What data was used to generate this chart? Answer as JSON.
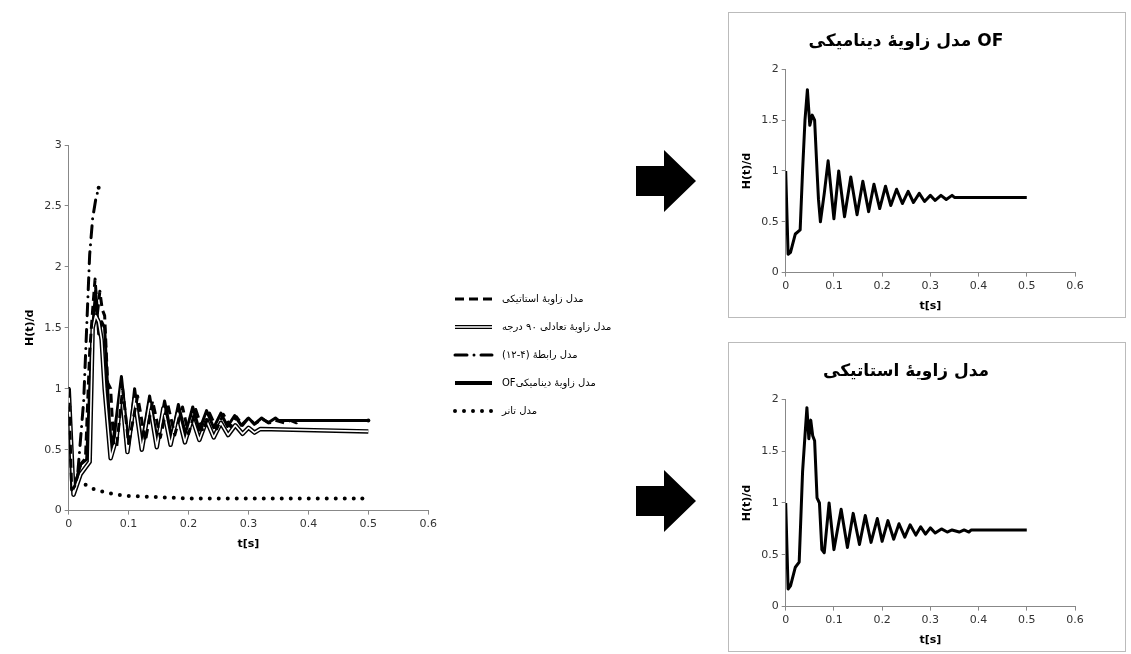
{
  "chart_data": [
    {
      "type": "line",
      "xlabel": "t[s]",
      "ylabel": "H(t)/d",
      "xlim": [
        0,
        0.6
      ],
      "xticks": [
        0,
        0.1,
        0.2,
        0.3,
        0.4,
        0.5,
        0.6
      ],
      "ylim": [
        0,
        3
      ],
      "yticks": [
        0,
        0.5,
        1,
        1.5,
        2,
        2.5,
        3
      ],
      "legend": "right",
      "grid": false,
      "marker": "none",
      "series": [
        {
          "name": "مدل زاویهٔ استاتیکی",
          "color": "#000000",
          "line_style": "dashed",
          "x": [
            0,
            0.005,
            0.01,
            0.02,
            0.028,
            0.035,
            0.04,
            0.044,
            0.048,
            0.052,
            0.056,
            0.06,
            0.065,
            0.07,
            0.075,
            0.08,
            0.09,
            0.1,
            0.115,
            0.128,
            0.14,
            0.153,
            0.165,
            0.177,
            0.19,
            0.2,
            0.212,
            0.224,
            0.235,
            0.247,
            0.258,
            0.27,
            0.28,
            0.29,
            0.3,
            0.31,
            0.323,
            0.335,
            0.345,
            0.36,
            0.37,
            0.38,
            0.385,
            0.5
          ],
          "values": [
            1,
            0.17,
            0.2,
            0.38,
            0.43,
            1.3,
            1.65,
            1.9,
            1.62,
            1.8,
            1.65,
            1.6,
            1.05,
            1.0,
            0.55,
            0.52,
            1.0,
            0.55,
            0.94,
            0.57,
            0.9,
            0.6,
            0.88,
            0.62,
            0.85,
            0.63,
            0.83,
            0.65,
            0.8,
            0.67,
            0.79,
            0.69,
            0.77,
            0.7,
            0.76,
            0.71,
            0.75,
            0.72,
            0.74,
            0.72,
            0.74,
            0.72,
            0.74,
            0.74
          ]
        },
        {
          "name": "مدل زاویهٔ تعادلی ۹۰ درجه",
          "color": "#000000",
          "line_style": "solid",
          "x": [
            0,
            0.008,
            0.02,
            0.035,
            0.04,
            0.045,
            0.05,
            0.055,
            0.06,
            0.07,
            0.08,
            0.088,
            0.098,
            0.11,
            0.122,
            0.135,
            0.147,
            0.158,
            0.17,
            0.182,
            0.194,
            0.206,
            0.218,
            0.23,
            0.242,
            0.254,
            0.266,
            0.278,
            0.29,
            0.3,
            0.31,
            0.32,
            0.5
          ],
          "values": [
            1,
            0.13,
            0.3,
            0.4,
            1.5,
            1.6,
            1.55,
            1.4,
            1.0,
            0.43,
            0.6,
            1.0,
            0.48,
            0.92,
            0.5,
            0.88,
            0.52,
            0.84,
            0.54,
            0.8,
            0.56,
            0.76,
            0.58,
            0.74,
            0.6,
            0.72,
            0.62,
            0.7,
            0.63,
            0.68,
            0.64,
            0.67,
            0.65
          ]
        },
        {
          "name": "مدل رابطهٔ (۴-۱۲)",
          "color": "#000000",
          "line_style": "dashdot",
          "x": [
            0,
            0.008,
            0.015,
            0.025,
            0.03,
            0.035,
            0.04,
            0.045,
            0.05
          ],
          "values": [
            1,
            0.13,
            0.3,
            0.9,
            1.5,
            2.1,
            2.4,
            2.55,
            2.65
          ]
        },
        {
          "name": "مدل زاویهٔ دینامیکیOF",
          "color": "#000000",
          "line_style": "solid",
          "x": [
            0,
            0.005,
            0.01,
            0.02,
            0.03,
            0.035,
            0.04,
            0.045,
            0.05,
            0.055,
            0.06,
            0.065,
            0.068,
            0.072,
            0.08,
            0.088,
            0.1,
            0.11,
            0.122,
            0.135,
            0.148,
            0.16,
            0.172,
            0.183,
            0.195,
            0.207,
            0.218,
            0.23,
            0.242,
            0.254,
            0.265,
            0.277,
            0.288,
            0.3,
            0.31,
            0.322,
            0.333,
            0.345,
            0.35,
            0.5
          ],
          "values": [
            1,
            0.18,
            0.2,
            0.38,
            0.42,
            1.0,
            1.5,
            1.8,
            1.45,
            1.55,
            1.5,
            1.0,
            0.72,
            0.5,
            0.78,
            1.1,
            0.53,
            1.0,
            0.55,
            0.94,
            0.57,
            0.9,
            0.6,
            0.87,
            0.63,
            0.85,
            0.66,
            0.82,
            0.68,
            0.8,
            0.69,
            0.78,
            0.7,
            0.76,
            0.71,
            0.76,
            0.72,
            0.76,
            0.74,
            0.74
          ]
        },
        {
          "name": "مدل تانر",
          "color": "#000000",
          "line_style": "dotted",
          "x": [
            0,
            0.007,
            0.015,
            0.025,
            0.04,
            0.06,
            0.08,
            0.1,
            0.15,
            0.2,
            0.3,
            0.49
          ],
          "values": [
            1,
            0.15,
            0.25,
            0.22,
            0.18,
            0.15,
            0.13,
            0.12,
            0.11,
            0.1,
            0.1,
            0.1
          ]
        }
      ]
    },
    {
      "type": "line",
      "title": "مدل زاویهٔ دینامیکی OF",
      "xlabel": "t[s]",
      "ylabel": "H(t)/d",
      "xlim": [
        0,
        0.6
      ],
      "xticks": [
        0,
        0.1,
        0.2,
        0.3,
        0.4,
        0.5,
        0.6
      ],
      "ylim": [
        0,
        2
      ],
      "yticks": [
        0,
        0.5,
        1,
        1.5,
        2
      ],
      "grid": false,
      "marker": "none",
      "series": [
        {
          "color": "#000000",
          "line_style": "solid",
          "x": [
            0,
            0.005,
            0.01,
            0.02,
            0.03,
            0.035,
            0.04,
            0.045,
            0.05,
            0.055,
            0.06,
            0.065,
            0.068,
            0.072,
            0.08,
            0.088,
            0.1,
            0.11,
            0.122,
            0.135,
            0.148,
            0.16,
            0.172,
            0.183,
            0.195,
            0.207,
            0.218,
            0.23,
            0.242,
            0.254,
            0.265,
            0.277,
            0.288,
            0.3,
            0.31,
            0.322,
            0.333,
            0.345,
            0.35,
            0.5
          ],
          "values": [
            1,
            0.18,
            0.2,
            0.38,
            0.42,
            1.0,
            1.5,
            1.8,
            1.45,
            1.55,
            1.5,
            1.0,
            0.72,
            0.5,
            0.78,
            1.1,
            0.53,
            1.0,
            0.55,
            0.94,
            0.57,
            0.9,
            0.6,
            0.87,
            0.63,
            0.85,
            0.66,
            0.82,
            0.68,
            0.8,
            0.69,
            0.78,
            0.7,
            0.76,
            0.71,
            0.76,
            0.72,
            0.76,
            0.74,
            0.74
          ]
        }
      ]
    },
    {
      "type": "line",
      "title": "مدل زاویهٔ استاتیکی",
      "xlabel": "t[s]",
      "ylabel": "H(t)/d",
      "xlim": [
        0,
        0.6
      ],
      "xticks": [
        0,
        0.1,
        0.2,
        0.3,
        0.4,
        0.5,
        0.6
      ],
      "ylim": [
        0,
        2
      ],
      "yticks": [
        0,
        0.5,
        1,
        1.5,
        2
      ],
      "grid": false,
      "marker": "none",
      "series": [
        {
          "color": "#000000",
          "line_style": "solid",
          "x": [
            0,
            0.005,
            0.01,
            0.02,
            0.028,
            0.035,
            0.04,
            0.044,
            0.048,
            0.052,
            0.056,
            0.06,
            0.065,
            0.07,
            0.075,
            0.08,
            0.09,
            0.1,
            0.115,
            0.128,
            0.14,
            0.153,
            0.165,
            0.177,
            0.19,
            0.2,
            0.212,
            0.224,
            0.235,
            0.247,
            0.258,
            0.27,
            0.28,
            0.29,
            0.3,
            0.31,
            0.323,
            0.335,
            0.345,
            0.36,
            0.37,
            0.38,
            0.385,
            0.5
          ],
          "values": [
            1,
            0.17,
            0.2,
            0.38,
            0.43,
            1.3,
            1.65,
            1.92,
            1.62,
            1.8,
            1.65,
            1.6,
            1.05,
            1.0,
            0.55,
            0.52,
            1.0,
            0.55,
            0.94,
            0.57,
            0.9,
            0.6,
            0.88,
            0.62,
            0.85,
            0.63,
            0.83,
            0.65,
            0.8,
            0.67,
            0.79,
            0.69,
            0.77,
            0.7,
            0.76,
            0.71,
            0.75,
            0.72,
            0.74,
            0.72,
            0.74,
            0.72,
            0.74,
            0.74
          ]
        }
      ]
    }
  ]
}
